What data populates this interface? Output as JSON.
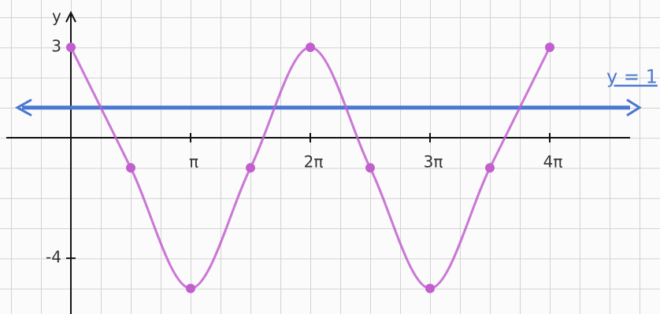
{
  "chart_data": {
    "type": "line",
    "y_label": "y",
    "x": [
      0,
      1.5708,
      3.1416,
      4.7124,
      6.2832,
      7.854,
      9.4248,
      10.9956,
      12.5664
    ],
    "series": [
      {
        "color": "#c25fcf",
        "values": [
          3,
          -1,
          -5,
          -1,
          3,
          -1,
          -5,
          -1,
          3
        ]
      }
    ],
    "hline": {
      "value": 1,
      "label": "y = 1",
      "color": "#4a78d0"
    },
    "xlim": [
      -1.86,
      15.46
    ],
    "ylim": [
      -5.85,
      4.57
    ],
    "xticks": [
      {
        "value": 3.1416,
        "label": "π"
      },
      {
        "value": 6.2832,
        "label": "2π"
      },
      {
        "value": 9.4248,
        "label": "3π"
      },
      {
        "value": 12.5664,
        "label": "4π"
      }
    ],
    "yticks": [
      3,
      -4
    ],
    "grid": true
  }
}
